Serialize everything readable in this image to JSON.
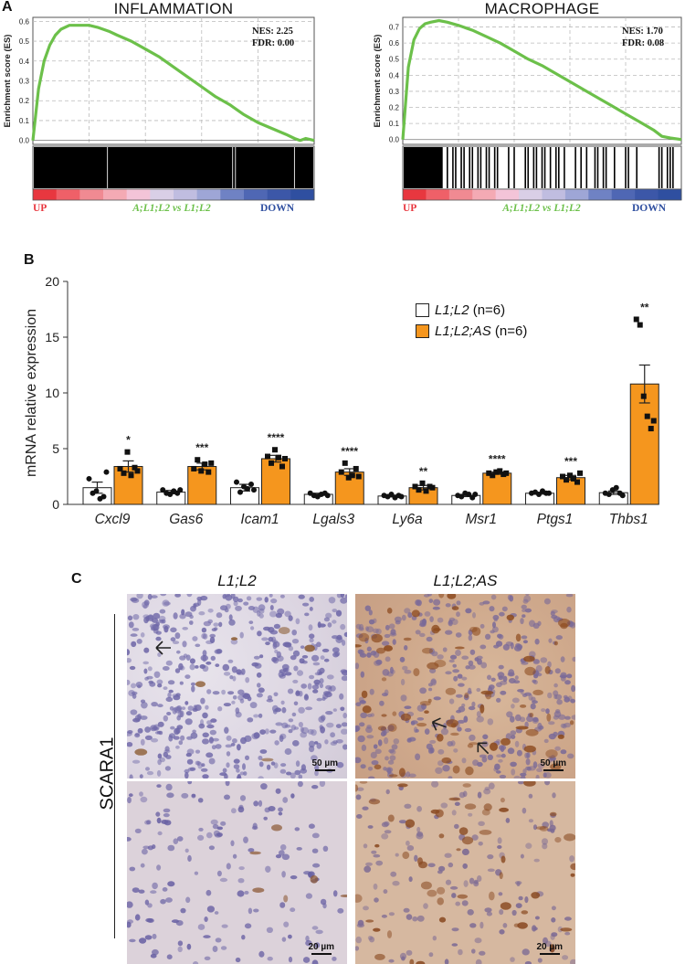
{
  "panel_a": {
    "letter": "A",
    "ylabel": "Enrichment score (ES)",
    "up_label": "UP",
    "down_label": "DOWN",
    "curve_color": "#6cc04a",
    "up_color": "#e8373f",
    "down_color": "#2f4fa0",
    "comparison_color": "#6cc04a"
  },
  "panel_b": {
    "letter": "B",
    "legend": [
      {
        "label_italic": "L1;L2",
        "label_rest": " (n=6)",
        "color": "#ffffff"
      },
      {
        "label_italic": "L1;L2;AS",
        "label_rest": " (n=6)",
        "color": "#f5961e"
      }
    ]
  },
  "panel_c": {
    "letter": "C",
    "columns": [
      "L1;L2",
      "L1;L2;AS"
    ],
    "row_label": "SCARA1",
    "scale_bars": [
      "50 µm",
      "50 µm",
      "20 µm",
      "20 µm"
    ]
  },
  "chart_data": [
    {
      "type": "line",
      "title": "INFLAMMATION",
      "ylabel": "Enrichment score (ES)",
      "nes": "NES: 2.25",
      "fdr": "FDR: 0.00",
      "comparison_label": "A;L1;L2 vs L1;L2",
      "ylim": [
        -0.02,
        0.62
      ],
      "yticks": [
        "0.6",
        "0.5",
        "0.4",
        "0.3",
        "0.2",
        "0.1",
        "0.0"
      ],
      "x": [
        0,
        0.02,
        0.04,
        0.06,
        0.08,
        0.1,
        0.13,
        0.16,
        0.2,
        0.23,
        0.27,
        0.3,
        0.35,
        0.4,
        0.45,
        0.5,
        0.55,
        0.6,
        0.65,
        0.7,
        0.75,
        0.8,
        0.85,
        0.9,
        0.93,
        0.95,
        0.97,
        1.0
      ],
      "y": [
        0,
        0.26,
        0.4,
        0.48,
        0.53,
        0.56,
        0.58,
        0.58,
        0.58,
        0.57,
        0.55,
        0.53,
        0.5,
        0.46,
        0.42,
        0.37,
        0.32,
        0.27,
        0.22,
        0.18,
        0.13,
        0.09,
        0.06,
        0.03,
        0.01,
        0.0,
        0.01,
        0.0
      ],
      "grid": true,
      "hits": "dense"
    },
    {
      "type": "line",
      "title": "MACROPHAGE",
      "ylabel": "Enrichment score (ES)",
      "nes": "NES: 1.70",
      "fdr": "FDR: 0.08",
      "comparison_label": "A;L1;L2 vs L1;L2",
      "ylim": [
        -0.03,
        0.76
      ],
      "yticks": [
        "0.7",
        "0.6",
        "0.5",
        "0.4",
        "0.3",
        "0.2",
        "0.1",
        "0.0"
      ],
      "x": [
        0,
        0.02,
        0.04,
        0.06,
        0.08,
        0.1,
        0.13,
        0.16,
        0.2,
        0.25,
        0.3,
        0.35,
        0.4,
        0.45,
        0.5,
        0.55,
        0.6,
        0.65,
        0.7,
        0.75,
        0.8,
        0.85,
        0.9,
        0.93,
        0.96,
        1.0
      ],
      "y": [
        0,
        0.45,
        0.62,
        0.69,
        0.72,
        0.73,
        0.74,
        0.73,
        0.71,
        0.68,
        0.64,
        0.6,
        0.55,
        0.5,
        0.46,
        0.41,
        0.36,
        0.31,
        0.26,
        0.21,
        0.16,
        0.11,
        0.06,
        0.02,
        0.01,
        0.0
      ],
      "grid": true,
      "hits": "clustered"
    },
    {
      "type": "bar",
      "ylabel": "mRNA relative expression",
      "ylim": [
        0,
        20
      ],
      "yticks": [
        0,
        5,
        10,
        15,
        20
      ],
      "categories": [
        "Cxcl9",
        "Gas6",
        "Icam1",
        "Lgals3",
        "Ly6a",
        "Msr1",
        "Ptgs1",
        "Thbs1"
      ],
      "series": [
        {
          "name": "L1;L2 (n=6)",
          "color": "#ffffff",
          "values": [
            1.5,
            1.1,
            1.5,
            0.9,
            0.75,
            0.8,
            1.0,
            1.05
          ],
          "sem": [
            0.5,
            0.15,
            0.3,
            0.1,
            0.08,
            0.1,
            0.08,
            0.15
          ],
          "points": [
            [
              2.3,
              1.0,
              1.2,
              0.5,
              0.7,
              2.9
            ],
            [
              1.3,
              1.0,
              0.9,
              1.2,
              1.0,
              1.3
            ],
            [
              2.0,
              1.1,
              1.6,
              1.4,
              1.8,
              1.3
            ],
            [
              1.0,
              0.8,
              0.7,
              0.9,
              1.0,
              0.8
            ],
            [
              0.8,
              0.7,
              0.9,
              0.6,
              0.8,
              0.7
            ],
            [
              0.8,
              0.7,
              1.0,
              0.9,
              0.6,
              0.9
            ],
            [
              1.0,
              1.1,
              0.9,
              1.2,
              1.0,
              1.0
            ],
            [
              1.0,
              0.9,
              1.3,
              1.5,
              1.0,
              0.8
            ]
          ]
        },
        {
          "name": "L1;L2;AS (n=6)",
          "color": "#f5961e",
          "values": [
            3.4,
            3.4,
            4.1,
            2.9,
            1.5,
            2.8,
            2.4,
            10.8
          ],
          "sem": [
            0.5,
            0.3,
            0.3,
            0.3,
            0.2,
            0.1,
            0.2,
            1.7
          ],
          "sig": [
            "*",
            "***",
            "****",
            "****",
            "**",
            "****",
            "***",
            "**"
          ],
          "points": [
            [
              3.2,
              2.8,
              4.7,
              2.6,
              3.3,
              3.0
            ],
            [
              3.2,
              4.0,
              3.0,
              3.6,
              2.9,
              3.7
            ],
            [
              4.3,
              3.7,
              4.9,
              4.2,
              3.4,
              4.1
            ],
            [
              2.9,
              3.7,
              2.4,
              2.6,
              3.2,
              2.5
            ],
            [
              1.6,
              1.3,
              1.9,
              1.2,
              1.6,
              1.5
            ],
            [
              2.8,
              2.6,
              2.9,
              3.0,
              2.7,
              2.8
            ],
            [
              2.5,
              2.2,
              2.6,
              2.3,
              2.0,
              2.8
            ],
            [
              16.6,
              16.1,
              9.7,
              7.9,
              6.8,
              7.5
            ]
          ]
        }
      ]
    }
  ]
}
